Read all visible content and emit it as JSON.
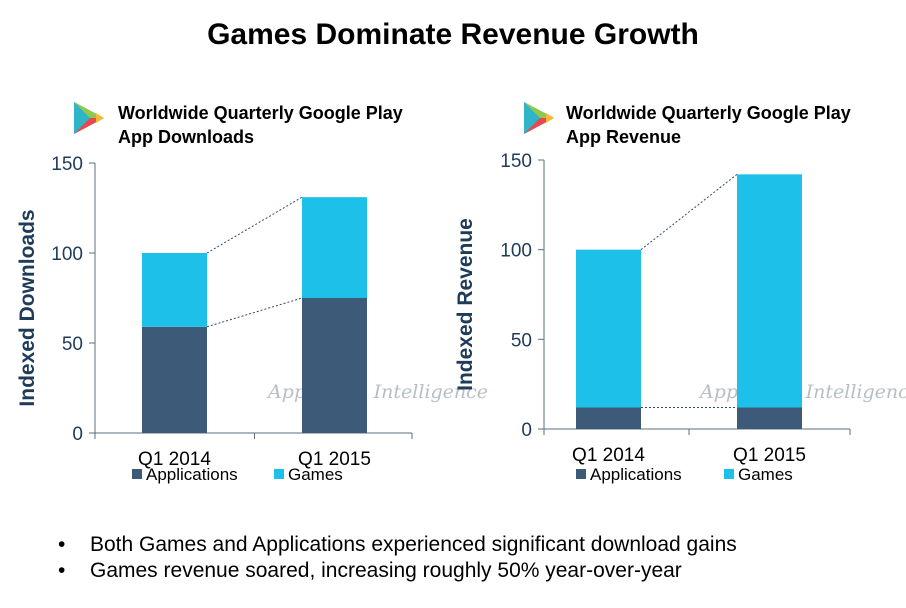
{
  "title": "Games Dominate Revenue Growth",
  "watermark": "App Annie Intelligence",
  "colors": {
    "applications": "#3d5a78",
    "games": "#1cc0e8",
    "axis": "#5d6d7e",
    "text": "#1f3b5a"
  },
  "charts": [
    {
      "title_line1": "Worldwide Quarterly Google Play",
      "title_line2": "App Downloads"
    },
    {
      "title_line1": "Worldwide Quarterly Google Play",
      "title_line2": "App Revenue"
    }
  ],
  "chart_data": [
    {
      "type": "bar",
      "stacked": true,
      "title": "Worldwide Quarterly Google Play App Downloads",
      "xlabel": "",
      "ylabel": "Indexed Downloads",
      "categories": [
        "Q1 2014",
        "Q1 2015"
      ],
      "series": [
        {
          "name": "Applications",
          "values": [
            59,
            75
          ]
        },
        {
          "name": "Games",
          "values": [
            41,
            56
          ]
        }
      ],
      "ylim": [
        0,
        150
      ],
      "yticks": [
        0,
        50,
        100,
        150
      ],
      "legend": "bottom"
    },
    {
      "type": "bar",
      "stacked": true,
      "title": "Worldwide Quarterly Google Play App Revenue",
      "xlabel": "",
      "ylabel": "Indexed Revenue",
      "categories": [
        "Q1 2014",
        "Q1 2015"
      ],
      "series": [
        {
          "name": "Applications",
          "values": [
            12,
            12
          ]
        },
        {
          "name": "Games",
          "values": [
            88,
            130
          ]
        }
      ],
      "ylim": [
        0,
        150
      ],
      "yticks": [
        0,
        50,
        100,
        150
      ],
      "legend": "bottom"
    }
  ],
  "bullets": [
    "Both Games and Applications experienced significant download gains",
    "Games revenue soared, increasing roughly 50% year-over-year"
  ]
}
